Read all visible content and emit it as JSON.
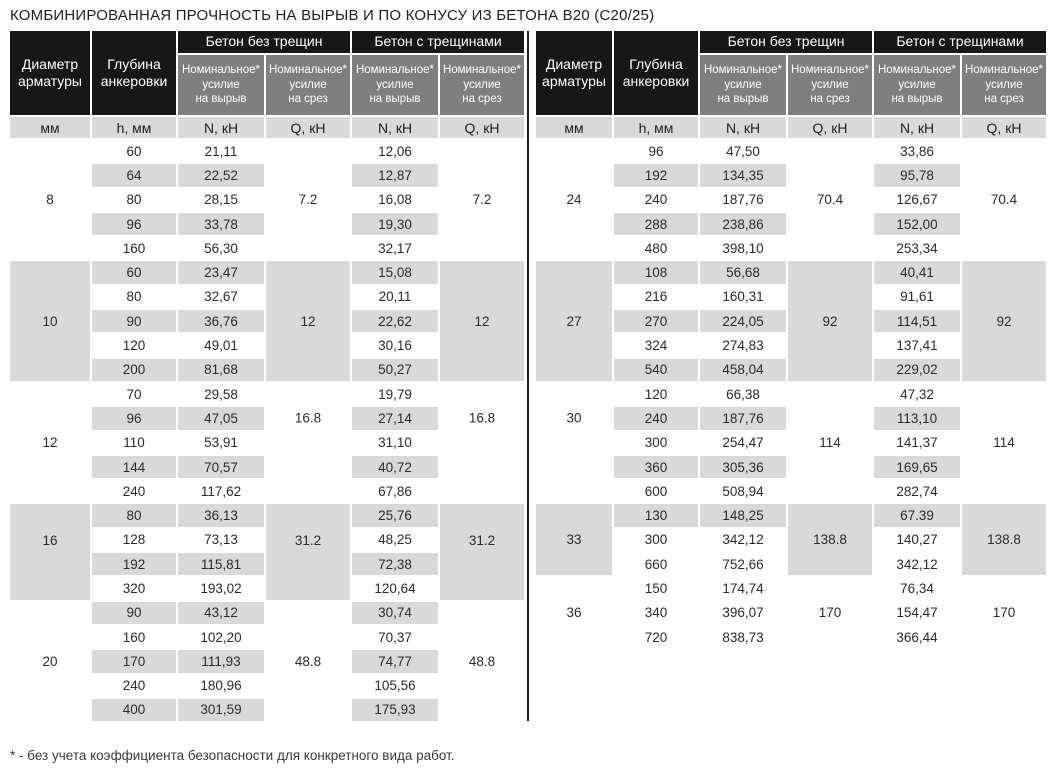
{
  "title": "КОМБИНИРОВАННАЯ ПРОЧНОСТЬ НА ВЫРЫВ И ПО КОНУСУ ИЗ БЕТОНА B20 (C20/25)",
  "footnote": "* - без учета коэффициента безопасности для конкретного вида работ.",
  "colors": {
    "header_black": "#171717",
    "subheader_gray": "#7f7f7f",
    "row_shade_gray": "#d9d9d9",
    "text_dark": "#262626",
    "divider_black": "#1c1c1c"
  },
  "header": {
    "col_diameter": "Диаметр\nарматуры",
    "col_depth": "Глубина\nанкеровки",
    "group_no_cracks": "Бетон без трещин",
    "group_cracks": "Бетон с трещинами",
    "sub_pullout": "Номинальное*\nусилие\nна вырыв",
    "sub_shear": "Номинальное*\nусилие\nна срез",
    "units": [
      "мм",
      "h, мм",
      "N, кН",
      "Q, кН",
      "N, кН",
      "Q, кН"
    ]
  },
  "tables": [
    {
      "name": "left",
      "blocks": [
        {
          "d": "8",
          "q": "7.2",
          "q2": "7.2",
          "d_row": 2,
          "q_row": 2,
          "shaded": 0,
          "rows": [
            {
              "h": "60",
              "n": "21,11",
              "n2": "12,06",
              "s": 0
            },
            {
              "h": "64",
              "n": "22,52",
              "n2": "12,87",
              "s": 1
            },
            {
              "h": "80",
              "n": "28,15",
              "n2": "16,08",
              "s": 0
            },
            {
              "h": "96",
              "n": "33,78",
              "n2": "19,30",
              "s": 1
            },
            {
              "h": "160",
              "n": "56,30",
              "n2": "32,17",
              "s": 0
            }
          ]
        },
        {
          "d": "10",
          "q": "12",
          "q2": "12",
          "d_row": 2,
          "q_row": 2,
          "shaded": 1,
          "rows": [
            {
              "h": "60",
              "n": "23,47",
              "n2": "15,08",
              "s": 1
            },
            {
              "h": "80",
              "n": "32,67",
              "n2": "20,11",
              "s": 0
            },
            {
              "h": "90",
              "n": "36,76",
              "n2": "22,62",
              "s": 1
            },
            {
              "h": "120",
              "n": "49,01",
              "n2": "30,16",
              "s": 0
            },
            {
              "h": "200",
              "n": "81,68",
              "n2": "50,27",
              "s": 1
            }
          ]
        },
        {
          "d": "12",
          "q": "16.8",
          "q2": "16.8",
          "d_row": 2,
          "q_row": 1,
          "shaded": 0,
          "rows": [
            {
              "h": "70",
              "n": "29,58",
              "n2": "19,79",
              "s": 0
            },
            {
              "h": "96",
              "n": "47,05",
              "n2": "27,14",
              "s": 1
            },
            {
              "h": "110",
              "n": "53,91",
              "n2": "31,10",
              "s": 0
            },
            {
              "h": "144",
              "n": "70,57",
              "n2": "40,72",
              "s": 1
            },
            {
              "h": "240",
              "n": "117,62",
              "n2": "67,86",
              "s": 0
            }
          ]
        },
        {
          "d": "16",
          "q": "31.2",
          "q2": "31.2",
          "d_row": 1,
          "q_row": 1,
          "shaded": 1,
          "rows": [
            {
              "h": "80",
              "n": "36,13",
              "n2": "25,76",
              "s": 1
            },
            {
              "h": "128",
              "n": "73,13",
              "n2": "48,25",
              "s": 0
            },
            {
              "h": "192",
              "n": "115,81",
              "n2": "72,38",
              "s": 1
            },
            {
              "h": "320",
              "n": "193,02",
              "n2": "120,64",
              "s": 0
            }
          ]
        },
        {
          "d": "20",
          "q": "48.8",
          "q2": "48.8",
          "d_row": 2,
          "q_row": 2,
          "shaded": 0,
          "rows": [
            {
              "h": "90",
              "n": "43,12",
              "n2": "30,74",
              "s": 1
            },
            {
              "h": "160",
              "n": "102,20",
              "n2": "70,37",
              "s": 0
            },
            {
              "h": "170",
              "n": "111,93",
              "n2": "74,77",
              "s": 1
            },
            {
              "h": "240",
              "n": "180,96",
              "n2": "105,56",
              "s": 0
            },
            {
              "h": "400",
              "n": "301,59",
              "n2": "175,93",
              "s": 1
            }
          ]
        }
      ]
    },
    {
      "name": "right",
      "blocks": [
        {
          "d": "24",
          "q": "70.4",
          "q2": "70.4",
          "d_row": 2,
          "q_row": 2,
          "shaded": 0,
          "rows": [
            {
              "h": "96",
              "n": "47,50",
              "n2": "33,86",
              "s": 0
            },
            {
              "h": "192",
              "n": "134,35",
              "n2": "95,78",
              "s": 1
            },
            {
              "h": "240",
              "n": "187,76",
              "n2": "126,67",
              "s": 0
            },
            {
              "h": "288",
              "n": "238,86",
              "n2": "152,00",
              "s": 1
            },
            {
              "h": "480",
              "n": "398,10",
              "n2": "253,34",
              "s": 0
            }
          ]
        },
        {
          "d": "27",
          "q": "92",
          "q2": "92",
          "d_row": 2,
          "q_row": 2,
          "shaded": 1,
          "rows": [
            {
              "h": "108",
              "n": "56,68",
              "n2": "40,41",
              "s": 1
            },
            {
              "h": "216",
              "n": "160,31",
              "n2": "91,61",
              "s": 0
            },
            {
              "h": "270",
              "n": "224,05",
              "n2": "114,51",
              "s": 1
            },
            {
              "h": "324",
              "n": "274,83",
              "n2": "137,41",
              "s": 0
            },
            {
              "h": "540",
              "n": "458,04",
              "n2": "229,02",
              "s": 1
            }
          ]
        },
        {
          "d": "30",
          "q": "114",
          "q2": "114",
          "d_row": 1,
          "q_row": 2,
          "shaded": 0,
          "rows": [
            {
              "h": "120",
              "n": "66,38",
              "n2": "47,32",
              "s": 0
            },
            {
              "h": "240",
              "n": "187,76",
              "n2": "113,10",
              "s": 1
            },
            {
              "h": "300",
              "n": "254,47",
              "n2": "141,37",
              "s": 0
            },
            {
              "h": "360",
              "n": "305,36",
              "n2": "169,65",
              "s": 1
            },
            {
              "h": "600",
              "n": "508,94",
              "n2": "282,74",
              "s": 0
            }
          ]
        },
        {
          "d": "33",
          "q": "138.8",
          "q2": "138.8",
          "d_row": 1,
          "q_row": 1,
          "shaded": 1,
          "rows": [
            {
              "h": "130",
              "n": "148,25",
              "n2": "67.39",
              "s": 1
            },
            {
              "h": "300",
              "n": "342,12",
              "n2": "140,27",
              "s": 0
            },
            {
              "h": "660",
              "n": "752,66",
              "n2": "342,12",
              "s": 0
            }
          ]
        },
        {
          "d": "36",
          "q": "170",
          "q2": "170",
          "d_row": 1,
          "q_row": 1,
          "shaded": 0,
          "rows": [
            {
              "h": "150",
              "n": "174,74",
              "n2": "76,34",
              "s": 0
            },
            {
              "h": "340",
              "n": "396,07",
              "n2": "154,47",
              "s": 0
            },
            {
              "h": "720",
              "n": "838,73",
              "n2": "366,44",
              "s": 0
            }
          ]
        }
      ]
    }
  ]
}
